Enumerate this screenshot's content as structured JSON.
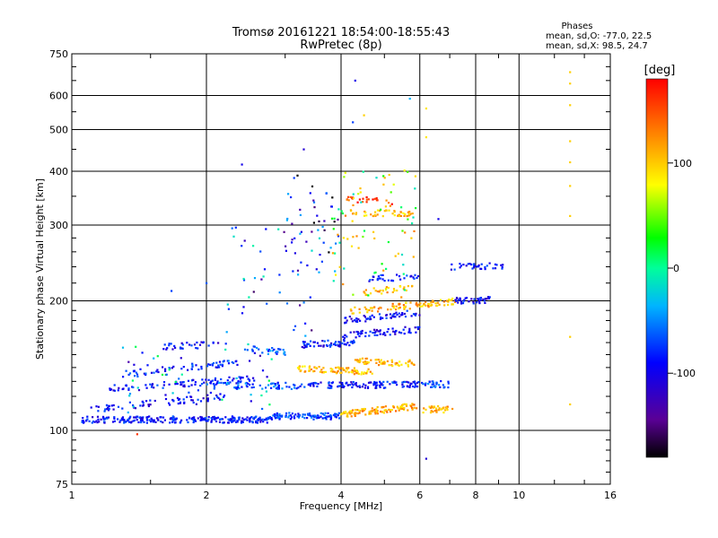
{
  "chart_data": {
    "type": "scatter",
    "title": "Tromsø 20161221 18:54:00-18:55:43",
    "subtitle": "RwPretec (8p)",
    "stats_header": "Phases",
    "stats_o": "mean, sd,O: -77.0, 22.5",
    "stats_x": "mean, sd,X:  98.5, 24.7",
    "xlabel": "Frequency [MHz]",
    "ylabel": "Stationary phase Virtual Height [km]",
    "x_scale": "log",
    "y_scale": "log",
    "xlim": [
      1,
      16
    ],
    "ylim": [
      75,
      750
    ],
    "x_ticks": [
      1,
      2,
      4,
      6,
      8,
      10,
      16
    ],
    "x_tick_labels": [
      "1",
      "2",
      "4",
      "6",
      "8",
      "10",
      "16"
    ],
    "y_ticks": [
      75,
      100,
      200,
      300,
      400,
      500,
      600,
      750
    ],
    "y_tick_labels": [
      "75",
      "100",
      "200",
      "300",
      "400",
      "500",
      "600",
      "750"
    ],
    "grid": true,
    "colorbar": {
      "label": "[deg]",
      "range": [
        -180,
        180
      ],
      "ticks": [
        100,
        0,
        -100
      ],
      "tick_labels": [
        "100",
        "0",
        "-100"
      ]
    },
    "traces": [
      {
        "f": [
          1.05,
          2.8
        ],
        "h": [
          106,
          106
        ],
        "phase": -95,
        "n": 260
      },
      {
        "f": [
          2.8,
          4.0
        ],
        "h": [
          108,
          108
        ],
        "phase": -80,
        "n": 90
      },
      {
        "f": [
          4.0,
          5.9
        ],
        "h": [
          109,
          114
        ],
        "phase": 115,
        "n": 110
      },
      {
        "f": [
          6.1,
          7.1
        ],
        "h": [
          112,
          112
        ],
        "phase": 110,
        "n": 35
      },
      {
        "f": [
          1.1,
          2.2
        ],
        "h": [
          112,
          120
        ],
        "phase": -100,
        "n": 70
      },
      {
        "f": [
          1.2,
          2.6
        ],
        "h": [
          125,
          132
        ],
        "phase": -95,
        "n": 80
      },
      {
        "f": [
          1.3,
          2.5
        ],
        "h": [
          135,
          145
        ],
        "phase": -90,
        "n": 60
      },
      {
        "f": [
          1.6,
          2.1
        ],
        "h": [
          157,
          158
        ],
        "phase": -100,
        "n": 30
      },
      {
        "f": [
          2.0,
          3.2
        ],
        "h": [
          127,
          127
        ],
        "phase": -75,
        "n": 60
      },
      {
        "f": [
          2.4,
          3.0
        ],
        "h": [
          155,
          152
        ],
        "phase": -70,
        "n": 30
      },
      {
        "f": [
          3.2,
          6.0
        ],
        "h": [
          127,
          128
        ],
        "phase": -95,
        "n": 120
      },
      {
        "f": [
          6.0,
          7.1
        ],
        "h": [
          128,
          128
        ],
        "phase": -80,
        "n": 30
      },
      {
        "f": [
          3.2,
          4.7
        ],
        "h": [
          139,
          137
        ],
        "phase": 110,
        "n": 80
      },
      {
        "f": [
          4.3,
          5.9
        ],
        "h": [
          145,
          143
        ],
        "phase": 108,
        "n": 60
      },
      {
        "f": [
          3.2,
          4.3
        ],
        "h": [
          158,
          160
        ],
        "phase": -95,
        "n": 60
      },
      {
        "f": [
          4.0,
          6.0
        ],
        "h": [
          166,
          172
        ],
        "phase": -105,
        "n": 60
      },
      {
        "f": [
          4.0,
          6.0
        ],
        "h": [
          180,
          188
        ],
        "phase": -100,
        "n": 60
      },
      {
        "f": [
          4.2,
          6.0
        ],
        "h": [
          190,
          196
        ],
        "phase": 115,
        "n": 50
      },
      {
        "f": [
          6.0,
          7.2
        ],
        "h": [
          196,
          200
        ],
        "phase": 108,
        "n": 40
      },
      {
        "f": [
          7.2,
          8.6
        ],
        "h": [
          200,
          201
        ],
        "phase": -105,
        "n": 40
      },
      {
        "f": [
          4.5,
          6.0
        ],
        "h": [
          210,
          215
        ],
        "phase": 110,
        "n": 30
      },
      {
        "f": [
          4.6,
          6.0
        ],
        "h": [
          225,
          228
        ],
        "phase": -90,
        "n": 30
      },
      {
        "f": [
          7.0,
          9.3
        ],
        "h": [
          240,
          242
        ],
        "phase": -100,
        "n": 35
      },
      {
        "f": [
          4.2,
          5.8
        ],
        "h": [
          320,
          320
        ],
        "phase": 110,
        "n": 45
      },
      {
        "f": [
          4.1,
          5.2
        ],
        "h": [
          345,
          340
        ],
        "phase": 155,
        "n": 25
      }
    ],
    "clouds": [
      {
        "f": [
          2.2,
          3.6
        ],
        "h": [
          165,
          300
        ],
        "phase": -80,
        "n": 40
      },
      {
        "f": [
          3.0,
          4.0
        ],
        "h": [
          230,
          400
        ],
        "phase": -120,
        "n": 50
      },
      {
        "f": [
          3.8,
          5.9
        ],
        "h": [
          200,
          420
        ],
        "phase": 60,
        "n": 80
      },
      {
        "f": [
          1.3,
          2.8
        ],
        "h": [
          110,
          160
        ],
        "phase": -60,
        "n": 60
      }
    ],
    "points": [
      {
        "f": 4.3,
        "h": 650,
        "phase": -110
      },
      {
        "f": 5.7,
        "h": 590,
        "phase": -40
      },
      {
        "f": 4.5,
        "h": 540,
        "phase": 100
      },
      {
        "f": 4.25,
        "h": 520,
        "phase": -80
      },
      {
        "f": 3.3,
        "h": 450,
        "phase": -120
      },
      {
        "f": 2.4,
        "h": 415,
        "phase": -110
      },
      {
        "f": 6.2,
        "h": 560,
        "phase": 90
      },
      {
        "f": 6.2,
        "h": 480,
        "phase": 90
      },
      {
        "f": 6.6,
        "h": 310,
        "phase": -110
      },
      {
        "f": 6.2,
        "h": 86,
        "phase": -120
      },
      {
        "f": 1.4,
        "h": 98,
        "phase": 160
      },
      {
        "f": 1.67,
        "h": 211,
        "phase": -80
      },
      {
        "f": 2.0,
        "h": 220,
        "phase": -70
      },
      {
        "f": 13.0,
        "h": 680,
        "phase": 100
      },
      {
        "f": 13.0,
        "h": 640,
        "phase": 100
      },
      {
        "f": 13.0,
        "h": 570,
        "phase": 100
      },
      {
        "f": 13.0,
        "h": 470,
        "phase": 100
      },
      {
        "f": 13.0,
        "h": 420,
        "phase": 100
      },
      {
        "f": 13.0,
        "h": 370,
        "phase": 100
      },
      {
        "f": 13.0,
        "h": 315,
        "phase": 100
      },
      {
        "f": 13.0,
        "h": 165,
        "phase": 100
      },
      {
        "f": 13.0,
        "h": 115,
        "phase": 100
      }
    ]
  }
}
